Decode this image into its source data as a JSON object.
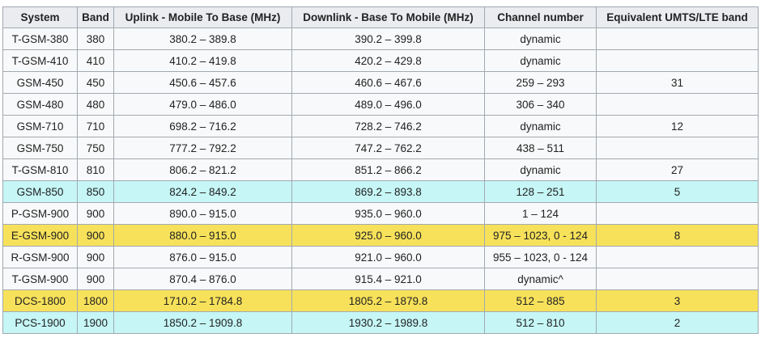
{
  "table": {
    "headers": [
      "System",
      "Band",
      "Uplink - Mobile To Base (MHz)",
      "Downlink - Base To Mobile (MHz)",
      "Channel number",
      "Equivalent UMTS/LTE band"
    ],
    "rows": [
      [
        "T-GSM-380",
        "380",
        "380.2 – 389.8",
        "390.2 – 399.8",
        "dynamic",
        null
      ],
      [
        "T-GSM-410",
        "410",
        "410.2 – 419.8",
        "420.2 – 429.8",
        "dynamic",
        null
      ],
      [
        "GSM-450",
        "450",
        "450.6 – 457.6",
        "460.6 – 467.6",
        "259 – 293",
        "31"
      ],
      [
        "GSM-480",
        "480",
        "479.0 – 486.0",
        "489.0 – 496.0",
        "306 – 340",
        null
      ],
      [
        "GSM-710",
        "710",
        "698.2 – 716.2",
        "728.2 – 746.2",
        "dynamic",
        "12"
      ],
      [
        "GSM-750",
        "750",
        "777.2 – 792.2",
        "747.2 – 762.2",
        "438 – 511",
        null
      ],
      [
        "T-GSM-810",
        "810",
        "806.2 – 821.2",
        "851.2 – 866.2",
        "dynamic",
        "27"
      ],
      [
        "GSM-850",
        "850",
        "824.2 – 849.2",
        "869.2 – 893.8",
        "128 – 251",
        "5"
      ],
      [
        "P-GSM-900",
        "900",
        "890.0 – 915.0",
        "935.0 – 960.0",
        "1 – 124",
        null
      ],
      [
        "E-GSM-900",
        "900",
        "880.0 – 915.0",
        "925.0 – 960.0",
        "975 – 1023, 0 - 124",
        "8"
      ],
      [
        "R-GSM-900",
        "900",
        "876.0 – 915.0",
        "921.0 – 960.0",
        "955 – 1023, 0 - 124",
        null
      ],
      [
        "T-GSM-900",
        "900",
        "870.4 – 876.0",
        "915.4 – 921.0",
        "dynamic^",
        null
      ],
      [
        "DCS-1800",
        "1800",
        "1710.2 – 1784.8",
        "1805.2 – 1879.8",
        "512 – 885",
        "3"
      ],
      [
        "PCS-1900",
        "1900",
        "1850.2 – 1909.8",
        "1930.2 – 1989.8",
        "512 – 810",
        "2"
      ]
    ]
  }
}
